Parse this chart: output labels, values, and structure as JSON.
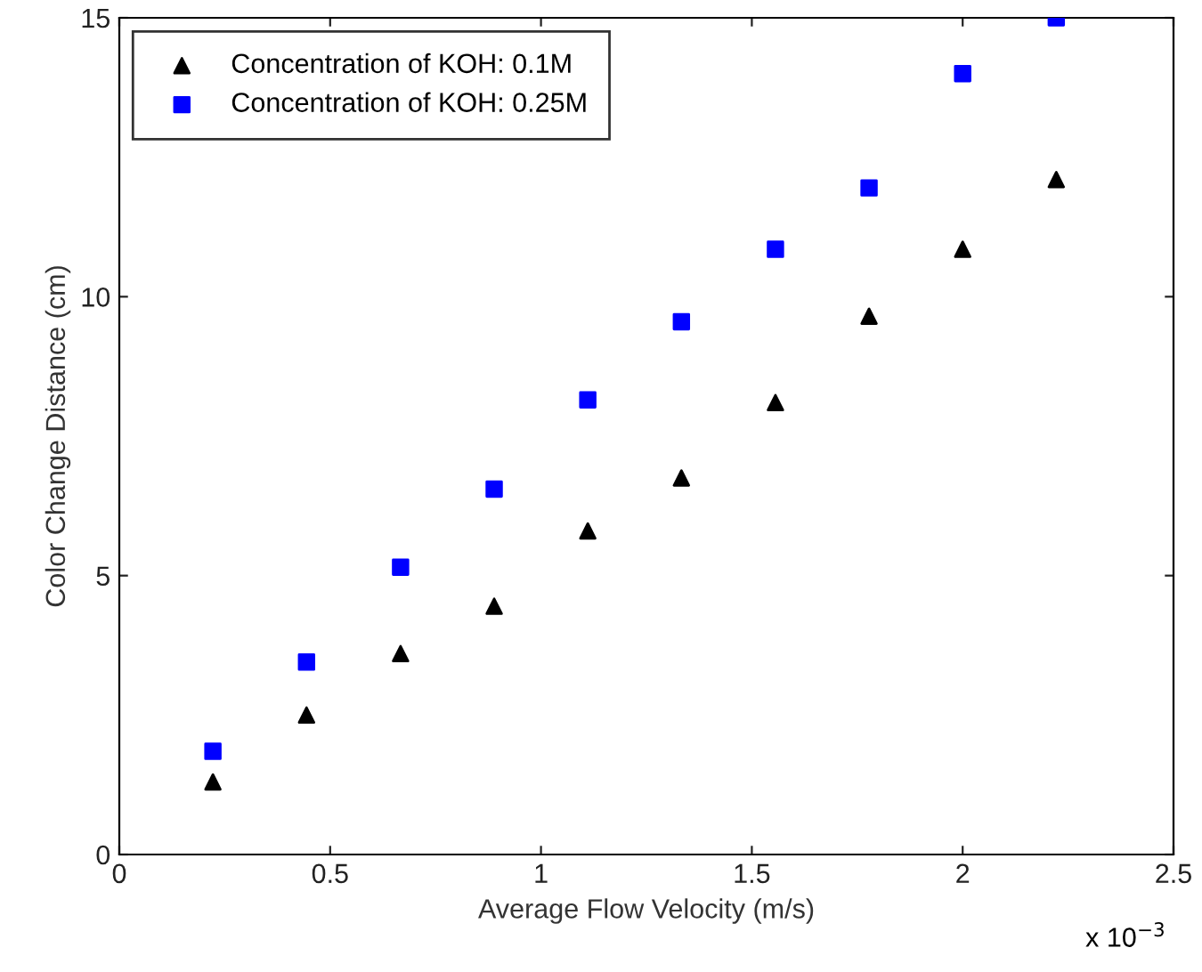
{
  "chart_data": {
    "type": "scatter",
    "xlabel": "Average Flow Velocity (m/s)",
    "ylabel": "Color Change Distance (cm)",
    "annotations": [
      "x 10$^{−3}$"
    ],
    "x": [
      0.222,
      0.444,
      0.667,
      0.889,
      1.111,
      1.333,
      1.556,
      1.778,
      2.0,
      2.222
    ],
    "series": [
      {
        "name": "Concentration of KOH: 0.1M",
        "color": "#000000",
        "marker": "triangle",
        "values": [
          1.3,
          2.5,
          3.6,
          4.45,
          5.8,
          6.75,
          8.1,
          9.65,
          10.85,
          12.1
        ]
      },
      {
        "name": "Concentration of KOH: 0.25M",
        "color": "#0000ff",
        "marker": "square",
        "values": [
          1.85,
          3.45,
          5.15,
          6.55,
          8.15,
          9.55,
          10.85,
          11.95,
          14.0,
          15.0
        ]
      }
    ],
    "xlim": [
      0,
      2.5
    ],
    "xticks": [
      0,
      0.5,
      1,
      1.5,
      2,
      2.5
    ],
    "ylim": [
      0,
      15
    ],
    "yticks": [
      0,
      5,
      10,
      15
    ],
    "grid": false,
    "legend": "top left"
  }
}
